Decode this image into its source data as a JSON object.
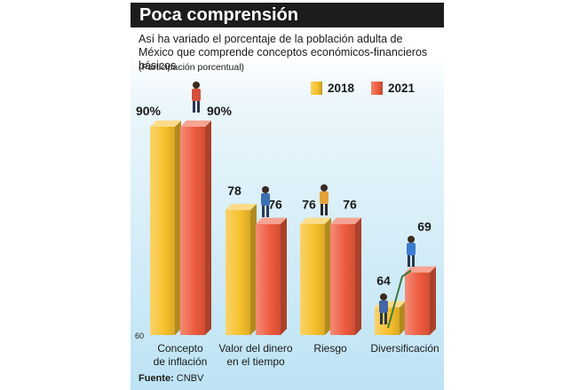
{
  "header": {
    "title": "Poca comprensión",
    "subtitle": "Así ha variado el porcentaje de la población adulta de México que comprende conceptos económicos-financieros básicos",
    "unit_note": "(Participación porcentual)"
  },
  "source": {
    "label": "Fuente:",
    "text": "CNBV"
  },
  "colors": {
    "series_2018": "#f6c02b",
    "series_2021": "#ee5a3c",
    "background": "#bde3f4",
    "title_bar": "#1c1c1c"
  },
  "chart_data": {
    "type": "bar",
    "title": "Poca comprensión",
    "ylabel": "",
    "xlabel": "",
    "ylim": [
      60,
      92
    ],
    "y_tick_labels": [
      "60"
    ],
    "categories": [
      [
        "Concepto",
        "de inflación"
      ],
      [
        "Valor del dinero",
        "en el tiempo"
      ],
      [
        "Riesgo"
      ],
      [
        "Diversificación"
      ]
    ],
    "series": [
      {
        "name": "2018",
        "values": [
          90,
          78,
          76,
          64
        ],
        "labels": [
          "90%",
          "78",
          "76",
          "64"
        ]
      },
      {
        "name": "2021",
        "values": [
          90,
          76,
          76,
          69
        ],
        "labels": [
          "90%",
          "76",
          "76",
          "69"
        ]
      }
    ],
    "legend_position": "top-right",
    "grid": false
  }
}
